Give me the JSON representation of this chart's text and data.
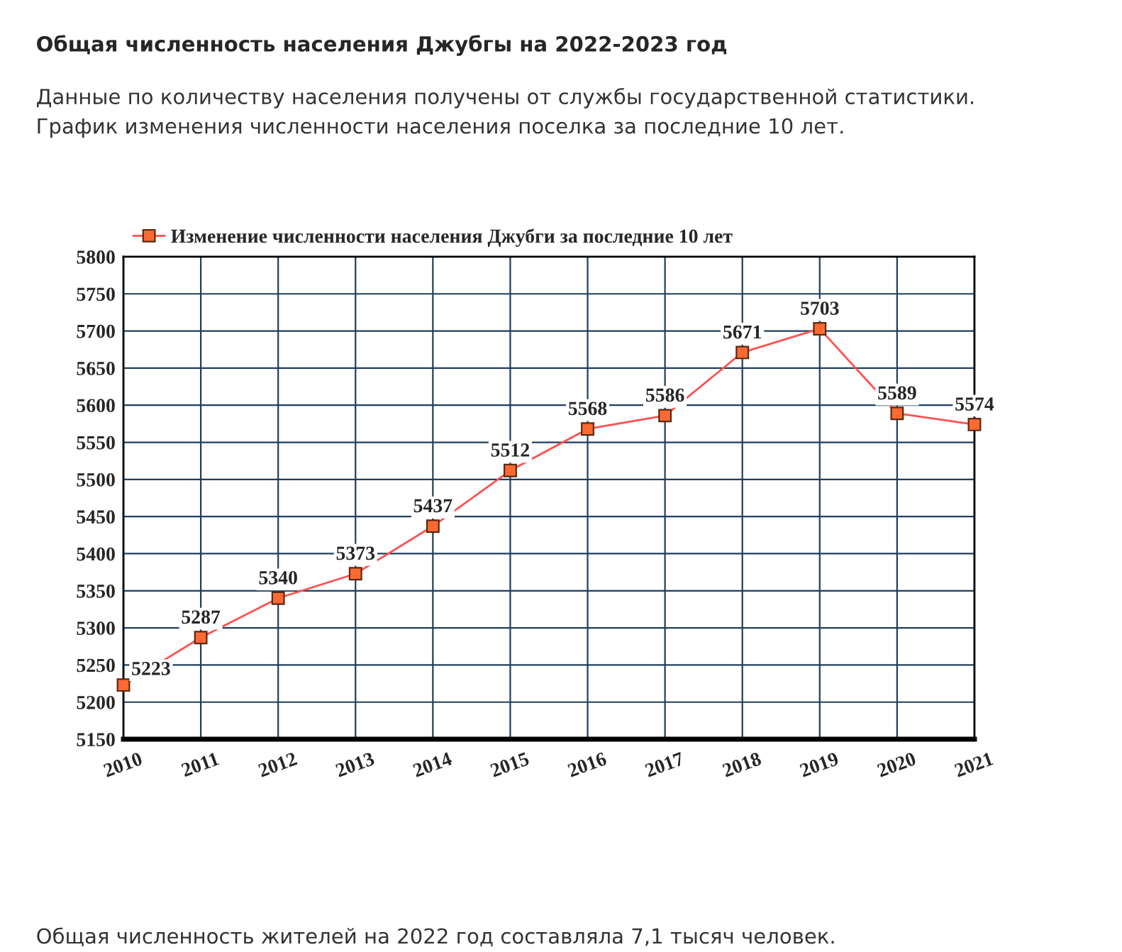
{
  "chart_data": {
    "type": "line",
    "title": "Общая численность населения Джубгы на 2022-2023 год",
    "subtitle": "Данные по количеству населения получены от службы государственной статистики.\nГрафик изменения численности населения поселка за последние 10 лет.",
    "x": [
      2010,
      2011,
      2012,
      2013,
      2014,
      2015,
      2016,
      2017,
      2018,
      2019,
      2020,
      2021
    ],
    "series": [
      {
        "name": "Изменение численности населения Джубги за последние 10 лет",
        "color": "#ff5050",
        "values": [
          5223,
          5287,
          5340,
          5373,
          5437,
          5512,
          5568,
          5586,
          5671,
          5703,
          5589,
          5574
        ]
      }
    ],
    "xlim": [
      2010,
      2021
    ],
    "xticks": [
      2010,
      2011,
      2012,
      2013,
      2014,
      2015,
      2016,
      2017,
      2018,
      2019,
      2020,
      2021
    ],
    "ylim": [
      5150,
      5800
    ],
    "yticks": [
      5150,
      5200,
      5250,
      5300,
      5350,
      5400,
      5450,
      5500,
      5550,
      5600,
      5650,
      5700,
      5750,
      5800
    ],
    "grid": true,
    "legend": "top left",
    "marker": "square",
    "line_style": "solid",
    "data_labels": true,
    "annotations": [
      "Общая численность жителей на 2022 год составляла 7,1 тысяч человек."
    ]
  }
}
